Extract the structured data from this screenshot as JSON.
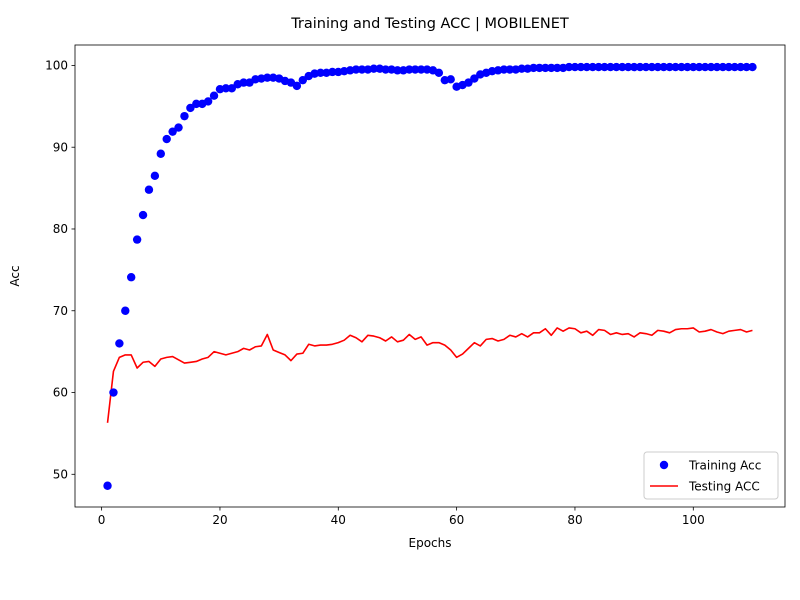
{
  "chart_data": {
    "type": "line",
    "title": "Training and Testing ACC | MOBILENET",
    "xlabel": "Epochs",
    "ylabel": "Acc",
    "xlim": [
      -4.5,
      115.5
    ],
    "ylim": [
      46,
      102.5
    ],
    "xticks": [
      0,
      20,
      40,
      60,
      80,
      100
    ],
    "yticks": [
      50,
      60,
      70,
      80,
      90,
      100
    ],
    "grid": false,
    "legend_position": "lower-right",
    "x": [
      1,
      2,
      3,
      4,
      5,
      6,
      7,
      8,
      9,
      10,
      11,
      12,
      13,
      14,
      15,
      16,
      17,
      18,
      19,
      20,
      21,
      22,
      23,
      24,
      25,
      26,
      27,
      28,
      29,
      30,
      31,
      32,
      33,
      34,
      35,
      36,
      37,
      38,
      39,
      40,
      41,
      42,
      43,
      44,
      45,
      46,
      47,
      48,
      49,
      50,
      51,
      52,
      53,
      54,
      55,
      56,
      57,
      58,
      59,
      60,
      61,
      62,
      63,
      64,
      65,
      66,
      67,
      68,
      69,
      70,
      71,
      72,
      73,
      74,
      75,
      76,
      77,
      78,
      79,
      80,
      81,
      82,
      83,
      84,
      85,
      86,
      87,
      88,
      89,
      90,
      91,
      92,
      93,
      94,
      95,
      96,
      97,
      98,
      99,
      100,
      101,
      102,
      103,
      104,
      105,
      106,
      107,
      108,
      109,
      110
    ],
    "series": [
      {
        "name": "Training Acc",
        "style": "markers",
        "color": "#0000ff",
        "values": [
          48.6,
          60.0,
          66.0,
          70.0,
          74.1,
          78.7,
          81.7,
          84.8,
          86.5,
          89.2,
          91.0,
          91.9,
          92.4,
          93.8,
          94.8,
          95.3,
          95.3,
          95.6,
          96.3,
          97.1,
          97.2,
          97.2,
          97.7,
          97.9,
          97.9,
          98.3,
          98.4,
          98.5,
          98.5,
          98.4,
          98.1,
          97.9,
          97.5,
          98.2,
          98.7,
          99.0,
          99.1,
          99.1,
          99.2,
          99.2,
          99.3,
          99.4,
          99.5,
          99.5,
          99.5,
          99.6,
          99.6,
          99.5,
          99.5,
          99.4,
          99.4,
          99.5,
          99.5,
          99.5,
          99.5,
          99.4,
          99.1,
          98.2,
          98.3,
          97.4,
          97.6,
          97.9,
          98.4,
          98.9,
          99.1,
          99.3,
          99.4,
          99.5,
          99.5,
          99.5,
          99.6,
          99.6,
          99.7,
          99.7,
          99.7,
          99.7,
          99.7,
          99.7,
          99.8,
          99.8,
          99.8,
          99.8,
          99.8,
          99.8,
          99.8,
          99.8,
          99.8,
          99.8,
          99.8,
          99.8,
          99.8,
          99.8,
          99.8,
          99.8,
          99.8,
          99.8,
          99.8,
          99.8,
          99.8,
          99.8,
          99.8,
          99.8,
          99.8,
          99.8,
          99.8,
          99.8,
          99.8,
          99.8,
          99.8,
          99.8
        ]
      },
      {
        "name": "Testing ACC",
        "style": "line",
        "color": "#ff0000",
        "values": [
          56.3,
          62.6,
          64.3,
          64.6,
          64.6,
          63.0,
          63.7,
          63.8,
          63.2,
          64.1,
          64.3,
          64.4,
          64.0,
          63.6,
          63.7,
          63.8,
          64.1,
          64.3,
          65.0,
          64.8,
          64.6,
          64.8,
          65.0,
          65.4,
          65.2,
          65.6,
          65.7,
          67.1,
          65.2,
          64.9,
          64.6,
          63.9,
          64.7,
          64.8,
          65.9,
          65.7,
          65.8,
          65.8,
          65.9,
          66.1,
          66.4,
          67.0,
          66.7,
          66.2,
          67.0,
          66.9,
          66.7,
          66.3,
          66.8,
          66.2,
          66.4,
          67.1,
          66.5,
          66.8,
          65.8,
          66.1,
          66.1,
          65.8,
          65.2,
          64.3,
          64.7,
          65.4,
          66.1,
          65.7,
          66.5,
          66.6,
          66.3,
          66.5,
          67.0,
          66.8,
          67.2,
          66.8,
          67.3,
          67.3,
          67.8,
          67.0,
          67.9,
          67.5,
          67.9,
          67.8,
          67.3,
          67.5,
          67.0,
          67.7,
          67.6,
          67.1,
          67.3,
          67.1,
          67.2,
          66.8,
          67.3,
          67.2,
          67.0,
          67.6,
          67.5,
          67.3,
          67.7,
          67.8,
          67.8,
          67.9,
          67.4,
          67.5,
          67.7,
          67.4,
          67.2,
          67.5,
          67.6,
          67.7,
          67.4,
          67.6
        ]
      }
    ]
  }
}
